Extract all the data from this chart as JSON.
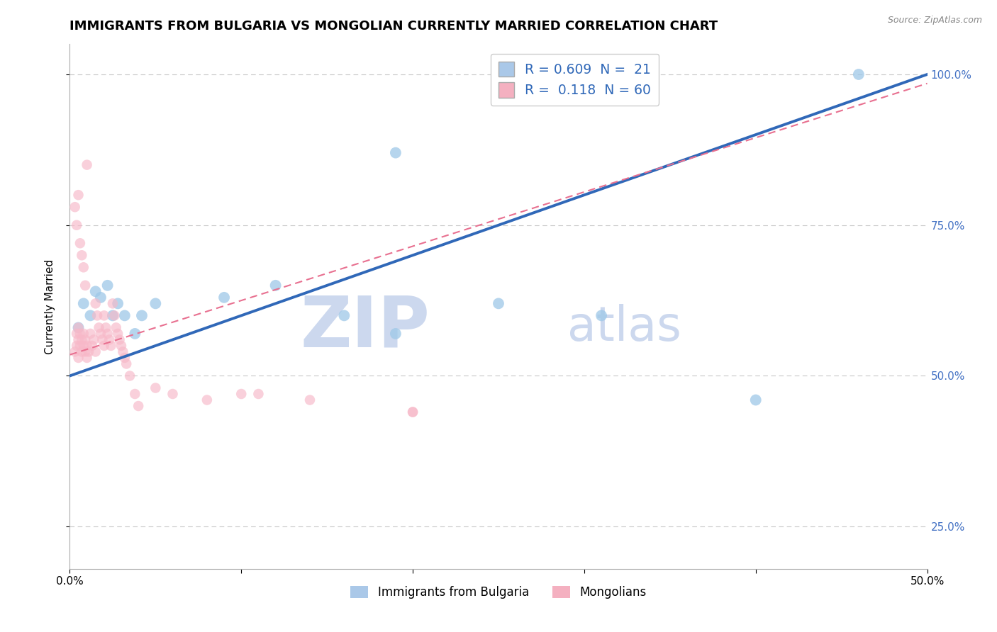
{
  "title": "IMMIGRANTS FROM BULGARIA VS MONGOLIAN CURRENTLY MARRIED CORRELATION CHART",
  "source_text": "Source: ZipAtlas.com",
  "ylabel": "Currently Married",
  "watermark_zip": "ZIP",
  "watermark_atlas": "atlas",
  "xlim": [
    0.0,
    0.5
  ],
  "ylim": [
    0.18,
    1.05
  ],
  "xticks": [
    0.0,
    0.1,
    0.2,
    0.3,
    0.4,
    0.5
  ],
  "xticklabels": [
    "0.0%",
    "",
    "",
    "",
    "",
    "50.0%"
  ],
  "yticks": [
    0.25,
    0.5,
    0.75,
    1.0
  ],
  "yticklabels": [
    "25.0%",
    "50.0%",
    "75.0%",
    "100.0%"
  ],
  "legend_label_blue": "R = 0.609  N =  21",
  "legend_label_pink": "R =  0.118  N = 60",
  "blue_scatter_x": [
    0.005,
    0.008,
    0.012,
    0.015,
    0.018,
    0.022,
    0.025,
    0.028,
    0.032,
    0.038,
    0.042,
    0.05,
    0.09,
    0.12,
    0.16,
    0.19,
    0.25,
    0.31,
    0.4,
    0.46,
    0.19
  ],
  "blue_scatter_y": [
    0.58,
    0.62,
    0.6,
    0.64,
    0.63,
    0.65,
    0.6,
    0.62,
    0.6,
    0.57,
    0.6,
    0.62,
    0.63,
    0.65,
    0.6,
    0.57,
    0.62,
    0.6,
    0.46,
    1.0,
    0.87
  ],
  "pink_scatter_x": [
    0.003,
    0.004,
    0.004,
    0.005,
    0.005,
    0.005,
    0.006,
    0.006,
    0.007,
    0.007,
    0.008,
    0.008,
    0.009,
    0.009,
    0.01,
    0.01,
    0.011,
    0.012,
    0.013,
    0.014,
    0.015,
    0.015,
    0.016,
    0.017,
    0.018,
    0.019,
    0.02,
    0.02,
    0.021,
    0.022,
    0.023,
    0.024,
    0.025,
    0.026,
    0.027,
    0.028,
    0.029,
    0.03,
    0.031,
    0.032,
    0.033,
    0.035,
    0.038,
    0.04,
    0.05,
    0.06,
    0.08,
    0.1,
    0.11,
    0.14,
    0.003,
    0.004,
    0.005,
    0.006,
    0.007,
    0.008,
    0.009,
    0.01,
    0.2,
    0.2
  ],
  "pink_scatter_y": [
    0.54,
    0.55,
    0.57,
    0.53,
    0.56,
    0.58,
    0.55,
    0.57,
    0.54,
    0.56,
    0.55,
    0.57,
    0.54,
    0.56,
    0.53,
    0.55,
    0.54,
    0.57,
    0.55,
    0.56,
    0.54,
    0.62,
    0.6,
    0.58,
    0.57,
    0.56,
    0.55,
    0.6,
    0.58,
    0.57,
    0.56,
    0.55,
    0.62,
    0.6,
    0.58,
    0.57,
    0.56,
    0.55,
    0.54,
    0.53,
    0.52,
    0.5,
    0.47,
    0.45,
    0.48,
    0.47,
    0.46,
    0.47,
    0.47,
    0.46,
    0.78,
    0.75,
    0.8,
    0.72,
    0.7,
    0.68,
    0.65,
    0.85,
    0.44,
    0.44
  ],
  "blue_line_x": [
    0.0,
    0.5
  ],
  "blue_line_y": [
    0.5,
    1.0
  ],
  "pink_line_x": [
    0.0,
    0.5
  ],
  "pink_line_y": [
    0.535,
    0.985
  ],
  "dot_color_blue": "#9ec8e8",
  "dot_color_pink": "#f7b8c8",
  "line_color_blue": "#3068b8",
  "line_color_pink": "#e87090",
  "grid_color": "#c8c8c8",
  "background_color": "#ffffff",
  "title_fontsize": 13,
  "axis_label_fontsize": 11,
  "tick_fontsize": 11,
  "right_tick_color": "#4472c4",
  "watermark_color": "#ccd8ee",
  "legend_box_color_blue": "#aac8e8",
  "legend_box_color_pink": "#f4b0c0",
  "bottom_legend_labels": [
    "Immigrants from Bulgaria",
    "Mongolians"
  ]
}
